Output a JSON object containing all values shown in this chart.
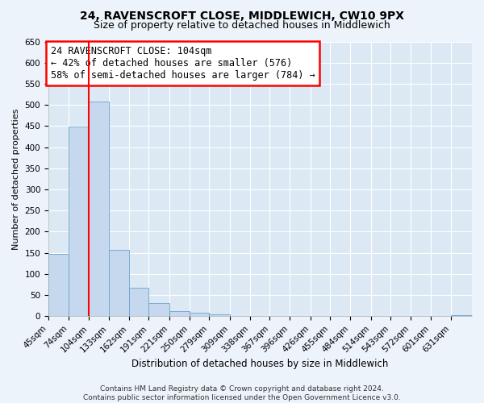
{
  "title1": "24, RAVENSCROFT CLOSE, MIDDLEWICH, CW10 9PX",
  "title2": "Size of property relative to detached houses in Middlewich",
  "xlabel": "Distribution of detached houses by size in Middlewich",
  "ylabel": "Number of detached properties",
  "bin_labels": [
    "45sqm",
    "74sqm",
    "104sqm",
    "133sqm",
    "162sqm",
    "191sqm",
    "221sqm",
    "250sqm",
    "279sqm",
    "309sqm",
    "338sqm",
    "367sqm",
    "396sqm",
    "426sqm",
    "455sqm",
    "484sqm",
    "514sqm",
    "543sqm",
    "572sqm",
    "601sqm",
    "631sqm"
  ],
  "bin_edges": [
    45,
    74,
    104,
    133,
    162,
    191,
    221,
    250,
    279,
    309,
    338,
    367,
    396,
    426,
    455,
    484,
    514,
    543,
    572,
    601,
    631
  ],
  "bar_heights": [
    147,
    448,
    507,
    158,
    67,
    32,
    13,
    8,
    5,
    0,
    0,
    0,
    0,
    0,
    0,
    0,
    0,
    0,
    0,
    0,
    3
  ],
  "bar_color": "#c5d8ed",
  "bar_edge_color": "#6aa3cc",
  "redline_x": 104,
  "ylim": [
    0,
    650
  ],
  "yticks": [
    0,
    50,
    100,
    150,
    200,
    250,
    300,
    350,
    400,
    450,
    500,
    550,
    600,
    650
  ],
  "annotation_title": "24 RAVENSCROFT CLOSE: 104sqm",
  "annotation_line1": "← 42% of detached houses are smaller (576)",
  "annotation_line2": "58% of semi-detached houses are larger (784) →",
  "footer1": "Contains HM Land Registry data © Crown copyright and database right 2024.",
  "footer2": "Contains public sector information licensed under the Open Government Licence v3.0.",
  "bg_color": "#edf3fa",
  "plot_bg_color": "#dce9f5",
  "grid_color": "#ffffff",
  "title_fontsize": 10,
  "subtitle_fontsize": 9,
  "axis_label_fontsize": 8,
  "tick_fontsize": 7.5,
  "annotation_fontsize": 8.5,
  "footer_fontsize": 6.5
}
